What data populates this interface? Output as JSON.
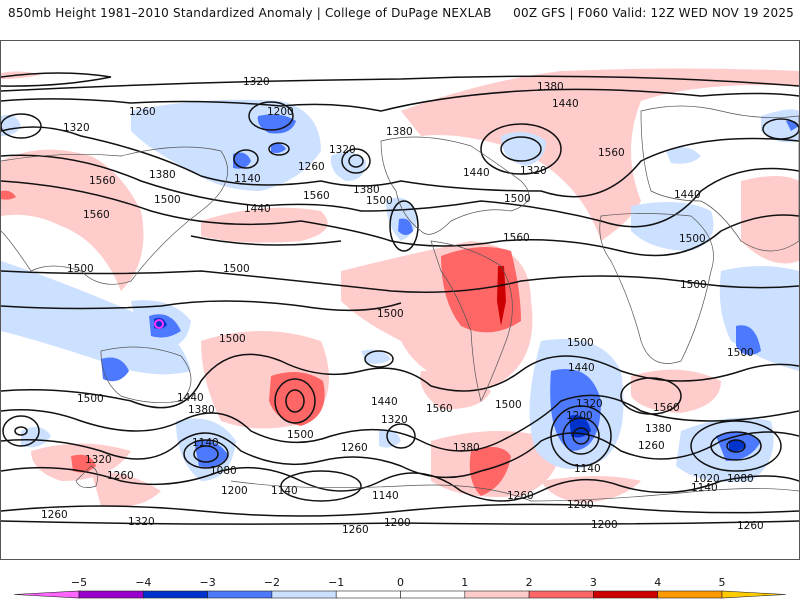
{
  "header": {
    "title_left": "850mb Height 1981–2010 Standardized Anomaly | College of DuPage NEXLAB",
    "title_right": "00Z GFS | F060 Valid: 12Z WED NOV 19 2025"
  },
  "map": {
    "field": "850mb Height",
    "shading": "Standardized Anomaly",
    "contour_unit": "m",
    "contour_labels": [
      {
        "value": "1320",
        "region": "north-pacific-top"
      },
      {
        "value": "1260",
        "region": "siberia"
      },
      {
        "value": "1200",
        "region": "east-siberia-low"
      },
      {
        "value": "1320",
        "region": "ural"
      },
      {
        "value": "1380",
        "region": "china-north"
      },
      {
        "value": "1140",
        "region": "kamchatka-low"
      },
      {
        "value": "1260",
        "region": "bering"
      },
      {
        "value": "1320",
        "region": "gulf-of-alaska"
      },
      {
        "value": "1560",
        "region": "central-asia"
      },
      {
        "value": "1560",
        "region": "tibet"
      },
      {
        "value": "1500",
        "region": "east-china"
      },
      {
        "value": "1440",
        "region": "north-pacific"
      },
      {
        "value": "1560",
        "region": "north-pacific-mid"
      },
      {
        "value": "1380",
        "region": "pacific-northwest"
      },
      {
        "value": "1500",
        "region": "california-coast"
      },
      {
        "value": "1380",
        "region": "canada"
      },
      {
        "value": "1440",
        "region": "great-lakes"
      },
      {
        "value": "1320",
        "region": "labrador-low"
      },
      {
        "value": "1500",
        "region": "east-coast-us"
      },
      {
        "value": "1560",
        "region": "caribbean"
      },
      {
        "value": "1380",
        "region": "greenland"
      },
      {
        "value": "1440",
        "region": "greenland-south"
      },
      {
        "value": "1560",
        "region": "north-atlantic"
      },
      {
        "value": "1440",
        "region": "europe"
      },
      {
        "value": "1440",
        "region": "west-siberia"
      },
      {
        "value": "1500",
        "region": "north-africa"
      },
      {
        "value": "1500",
        "region": "india"
      },
      {
        "value": "1500",
        "region": "western-pacific"
      },
      {
        "value": "1500",
        "region": "new-guinea"
      },
      {
        "value": "1500",
        "region": "central-pacific"
      },
      {
        "value": "1500",
        "region": "west-africa"
      },
      {
        "value": "1500",
        "region": "south-africa"
      },
      {
        "value": "1500",
        "region": "south-indian-ocean"
      },
      {
        "value": "1500",
        "region": "australia-south"
      },
      {
        "value": "1440",
        "region": "tasman"
      },
      {
        "value": "1380",
        "region": "tasman-south"
      },
      {
        "value": "1500",
        "region": "south-pacific-high"
      },
      {
        "value": "1440",
        "region": "south-pacific-mid"
      },
      {
        "value": "1320",
        "region": "south-pacific-trough"
      },
      {
        "value": "1560",
        "region": "southeast-pacific"
      },
      {
        "value": "1500",
        "region": "chile-south"
      },
      {
        "value": "1500",
        "region": "south-america-east"
      },
      {
        "value": "1440",
        "region": "south-atlantic-west"
      },
      {
        "value": "1320",
        "region": "south-atlantic-low"
      },
      {
        "value": "1200",
        "region": "south-atlantic-low-core"
      },
      {
        "value": "1140",
        "region": "south-atlantic-low-south"
      },
      {
        "value": "1560",
        "region": "south-atlantic-high"
      },
      {
        "value": "1380",
        "region": "south-atlantic-south"
      },
      {
        "value": "1260",
        "region": "south-atlantic-southeast"
      },
      {
        "value": "1500",
        "region": "south-indian-east"
      },
      {
        "value": "1320",
        "region": "new-zealand"
      },
      {
        "value": "1260",
        "region": "southern-ocean-west"
      },
      {
        "value": "1140",
        "region": "ross-sea-low"
      },
      {
        "value": "1080",
        "region": "ross-sea-low-core"
      },
      {
        "value": "1200",
        "region": "ross-sea-south"
      },
      {
        "value": "1140",
        "region": "amundsen"
      },
      {
        "value": "1260",
        "region": "southern-ocean-mid"
      },
      {
        "value": "1380",
        "region": "drake-passage"
      },
      {
        "value": "1260",
        "region": "weddell"
      },
      {
        "value": "1140",
        "region": "bellingshausen"
      },
      {
        "value": "1200",
        "region": "antarctic-coast"
      },
      {
        "value": "1260",
        "region": "antarctic-pacific"
      },
      {
        "value": "1320",
        "region": "antarctic-west"
      },
      {
        "value": "1260",
        "region": "antarctic-west-edge"
      },
      {
        "value": "1200",
        "region": "antarctic-atlantic"
      },
      {
        "value": "1200",
        "region": "antarctic-edge"
      },
      {
        "value": "1020",
        "region": "kerguelen-low-core"
      },
      {
        "value": "1080",
        "region": "kerguelen-low"
      },
      {
        "value": "1140",
        "region": "kerguelen-south"
      },
      {
        "value": "1260",
        "region": "antarctic-east"
      }
    ]
  },
  "colorbar": {
    "ticks": [
      "−5",
      "−4",
      "−3",
      "−2",
      "−1",
      "0",
      "1",
      "2",
      "3",
      "4",
      "5"
    ],
    "bins": [
      {
        "range": "< -5",
        "color": "#ff66ff"
      },
      {
        "range": "-5 to -4",
        "color": "#9900cc"
      },
      {
        "range": "-4 to -3",
        "color": "#0033cc"
      },
      {
        "range": "-3 to -2",
        "color": "#4d79ff"
      },
      {
        "range": "-2 to -1",
        "color": "#cce0ff"
      },
      {
        "range": "-1 to 0",
        "color": "#ffffff"
      },
      {
        "range": "0 to 1",
        "color": "#ffffff"
      },
      {
        "range": "1 to 2",
        "color": "#ffcccc"
      },
      {
        "range": "2 to 3",
        "color": "#ff6666"
      },
      {
        "range": "3 to 4",
        "color": "#cc0000"
      },
      {
        "range": "4 to 5",
        "color": "#ff9900"
      },
      {
        "range": "> 5",
        "color": "#ffcc00"
      }
    ]
  },
  "colors": {
    "neg_light": "#c8e0ff",
    "neg_mid": "#4d79ff",
    "neg_dark": "#0033cc",
    "neg_extreme": "#9900cc",
    "pos_light": "#ffcccc",
    "pos_mid": "#ff6666",
    "pos_dark": "#cc0000"
  }
}
